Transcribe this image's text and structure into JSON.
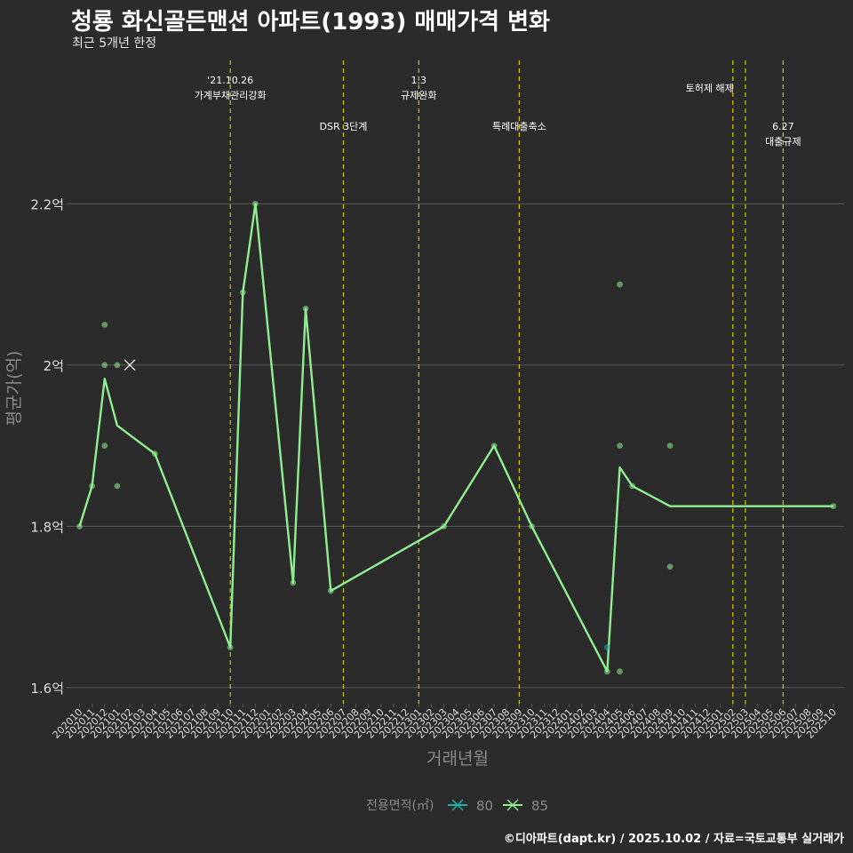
{
  "title": "청룡 화신골든맨션 아파트(1993) 매매가격 변화",
  "subtitle": "최근 5개년 한정",
  "footer": "©디아파트(dapt.kr) / 2025.10.02 / 자료=국토교통부 실거래가",
  "colors": {
    "background": "#2b2b2b",
    "grid": "#5a5a5a",
    "series_85": "#90ee90",
    "series_80": "#20b2aa",
    "event_line": "#cccc00",
    "axis_text": "#dddddd",
    "axis_title": "#8a8a8a"
  },
  "chart_data": {
    "type": "line",
    "xlabel": "거래년월",
    "ylabel": "평균가(억)",
    "ylim": [
      1.58,
      2.38
    ],
    "yticks": [
      1.6,
      1.8,
      2.0,
      2.2
    ],
    "ytick_labels": [
      "1.6억",
      "1.8억",
      "2억",
      "2.2억"
    ],
    "categories": [
      "202010",
      "202011",
      "202012",
      "202101",
      "202102",
      "202103",
      "202104",
      "202105",
      "202106",
      "202107",
      "202108",
      "202109",
      "202110",
      "202111",
      "202112",
      "202201",
      "202202",
      "202203",
      "202204",
      "202205",
      "202206",
      "202207",
      "202208",
      "202209",
      "202210",
      "202211",
      "202212",
      "202301",
      "202302",
      "202303",
      "202304",
      "202305",
      "202306",
      "202307",
      "202308",
      "202309",
      "202310",
      "202311",
      "202312",
      "202401",
      "202402",
      "202403",
      "202404",
      "202405",
      "202406",
      "202407",
      "202408",
      "202409",
      "202410",
      "202411",
      "202412",
      "202501",
      "202502",
      "202503",
      "202504",
      "202505",
      "202506",
      "202507",
      "202508",
      "202509",
      "202510"
    ],
    "legend_title": "전용면적(㎡)",
    "legend": [
      {
        "name": "80",
        "color": "#20b2aa"
      },
      {
        "name": "85",
        "color": "#90ee90"
      }
    ],
    "series": [
      {
        "name": "85",
        "line": [
          [
            "202010",
            1.8
          ],
          [
            "202011",
            1.85
          ],
          [
            "202012",
            1.983
          ],
          [
            "202101",
            1.925
          ],
          [
            "202104",
            1.89
          ],
          [
            "202110",
            1.65
          ],
          [
            "202111",
            2.09
          ],
          [
            "202112",
            2.2
          ],
          [
            "202203",
            1.73
          ],
          [
            "202204",
            2.07
          ],
          [
            "202206",
            1.72
          ],
          [
            "202303",
            1.8
          ],
          [
            "202307",
            1.9
          ],
          [
            "202310",
            1.8
          ],
          [
            "202404",
            1.62
          ],
          [
            "202405",
            1.873
          ],
          [
            "202406",
            1.85
          ],
          [
            "202409",
            1.825
          ],
          [
            "202510",
            1.825
          ]
        ],
        "points": [
          [
            "202010",
            1.8
          ],
          [
            "202011",
            1.85
          ],
          [
            "202012",
            2.05
          ],
          [
            "202012",
            2.0
          ],
          [
            "202012",
            1.9
          ],
          [
            "202101",
            2.0
          ],
          [
            "202101",
            1.85
          ],
          [
            "202104",
            1.89
          ],
          [
            "202110",
            1.65
          ],
          [
            "202111",
            2.09
          ],
          [
            "202112",
            2.2
          ],
          [
            "202203",
            1.73
          ],
          [
            "202204",
            2.07
          ],
          [
            "202206",
            1.72
          ],
          [
            "202303",
            1.8
          ],
          [
            "202307",
            1.9
          ],
          [
            "202310",
            1.8
          ],
          [
            "202404",
            1.62
          ],
          [
            "202405",
            2.1
          ],
          [
            "202405",
            1.9
          ],
          [
            "202405",
            1.62
          ],
          [
            "202406",
            1.85
          ],
          [
            "202409",
            1.9
          ],
          [
            "202409",
            1.75
          ],
          [
            "202510",
            1.825
          ]
        ],
        "x_marker": [
          "202102",
          2.0
        ]
      },
      {
        "name": "80",
        "points": [
          [
            "202404",
            1.65
          ]
        ]
      }
    ],
    "events": [
      {
        "month": "202110",
        "lines": [
          "'21.10.26",
          "가계부채관리강화"
        ],
        "row": 1
      },
      {
        "month": "202207",
        "lines": [
          "DSR 3단계"
        ],
        "row": 2
      },
      {
        "month": "202301",
        "lines": [
          "1.3",
          "규제완화"
        ],
        "row": 1
      },
      {
        "month": "202309",
        "lines": [
          "특례대출축소"
        ],
        "row": 2
      },
      {
        "month": "202502",
        "lines": [
          "토허제 해제"
        ],
        "row": 1,
        "anchor": "end"
      },
      {
        "month": "202503",
        "lines": [],
        "row": 1
      },
      {
        "month": "202506",
        "lines": [
          "6.27",
          "대출규제"
        ],
        "row": 2
      }
    ]
  }
}
